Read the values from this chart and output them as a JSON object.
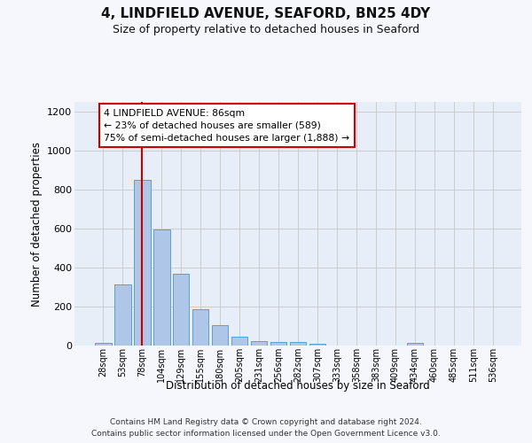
{
  "title_line1": "4, LINDFIELD AVENUE, SEAFORD, BN25 4DY",
  "title_line2": "Size of property relative to detached houses in Seaford",
  "xlabel": "Distribution of detached houses by size in Seaford",
  "ylabel": "Number of detached properties",
  "bar_labels": [
    "28sqm",
    "53sqm",
    "78sqm",
    "104sqm",
    "129sqm",
    "155sqm",
    "180sqm",
    "205sqm",
    "231sqm",
    "256sqm",
    "282sqm",
    "307sqm",
    "333sqm",
    "358sqm",
    "383sqm",
    "409sqm",
    "434sqm",
    "460sqm",
    "485sqm",
    "511sqm",
    "536sqm"
  ],
  "bar_values": [
    15,
    315,
    850,
    595,
    370,
    185,
    105,
    47,
    22,
    18,
    20,
    10,
    0,
    0,
    0,
    0,
    12,
    0,
    0,
    0,
    0
  ],
  "bar_color": "#aec6e8",
  "bar_edge_color": "#5a9fd4",
  "grid_color": "#cccccc",
  "vline_x_index": 2,
  "vline_color": "#cc0000",
  "annotation_line1": "4 LINDFIELD AVENUE: 86sqm",
  "annotation_line2": "← 23% of detached houses are smaller (589)",
  "annotation_line3": "75% of semi-detached houses are larger (1,888) →",
  "annotation_box_edgecolor": "#cc0000",
  "ylim_min": 0,
  "ylim_max": 1250,
  "yticks": [
    0,
    200,
    400,
    600,
    800,
    1000,
    1200
  ],
  "footer_line1": "Contains HM Land Registry data © Crown copyright and database right 2024.",
  "footer_line2": "Contains public sector information licensed under the Open Government Licence v3.0.",
  "plot_bg_color": "#e8eef8",
  "fig_bg_color": "#f5f7fc"
}
